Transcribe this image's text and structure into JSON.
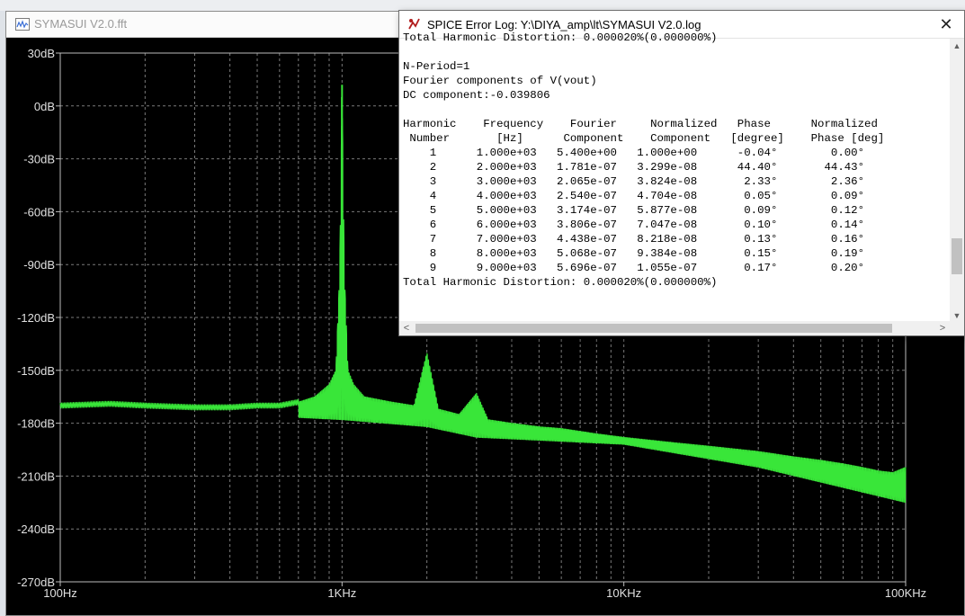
{
  "plot_window": {
    "title": "SYMASUI V2.0.fft",
    "trace_color": "#39e639"
  },
  "log_window": {
    "title": "SPICE Error Log: Y:\\DIYA_amp\\lt\\SYMASUI V2.0.log",
    "close_glyph": "✕",
    "lines": [
      "Total Harmonic Distortion: 0.000020%(0.000000%)",
      "",
      "N-Period=1",
      "Fourier components of V(vout)",
      "DC component:-0.039806",
      "",
      "Harmonic    Frequency    Fourier     Normalized   Phase      Normalized",
      " Number       [Hz]      Component    Component   [degree]    Phase [deg]",
      "    1      1.000e+03   5.400e+00   1.000e+00      -0.04°        0.00°",
      "    2      2.000e+03   1.781e-07   3.299e-08      44.40°       44.43°",
      "    3      3.000e+03   2.065e-07   3.824e-08       2.33°        2.36°",
      "    4      4.000e+03   2.540e-07   4.704e-08       0.05°        0.09°",
      "    5      5.000e+03   3.174e-07   5.877e-08       0.09°        0.12°",
      "    6      6.000e+03   3.806e-07   7.047e-08       0.10°        0.14°",
      "    7      7.000e+03   4.438e-07   8.218e-08       0.13°        0.16°",
      "    8      8.000e+03   5.068e-07   9.384e-08       0.15°        0.19°",
      "    9      9.000e+03   5.696e-07   1.055e-07       0.17°        0.20°",
      "Total Harmonic Distortion: 0.000020%(0.000000%)"
    ],
    "arrows": {
      "up": "▲",
      "down": "▼",
      "left": "<",
      "right": ">"
    }
  },
  "chart_data": {
    "type": "line",
    "title": "",
    "xlabel": "",
    "ylabel": "",
    "x_scale": "log",
    "xlim": [
      100,
      100000
    ],
    "ylim": [
      -270,
      30
    ],
    "grid": true,
    "x_ticks": [
      {
        "value": 100,
        "label": "100Hz"
      },
      {
        "value": 1000,
        "label": "1KHz"
      },
      {
        "value": 10000,
        "label": "10KHz"
      },
      {
        "value": 100000,
        "label": "100KHz"
      }
    ],
    "y_ticks": [
      {
        "value": 30,
        "label": "30dB"
      },
      {
        "value": 0,
        "label": "0dB"
      },
      {
        "value": -30,
        "label": "-30dB"
      },
      {
        "value": -60,
        "label": "-60dB"
      },
      {
        "value": -90,
        "label": "-90dB"
      },
      {
        "value": -120,
        "label": "-120dB"
      },
      {
        "value": -150,
        "label": "-150dB"
      },
      {
        "value": -180,
        "label": "-180dB"
      },
      {
        "value": -210,
        "label": "-210dB"
      },
      {
        "value": -240,
        "label": "-240dB"
      },
      {
        "value": -270,
        "label": "-270dB"
      }
    ],
    "series": [
      {
        "x": [
          100,
          150,
          200,
          300,
          400,
          500,
          600,
          700,
          800,
          900,
          950,
          980,
          1000,
          1020,
          1050,
          1100,
          1200,
          1500,
          1800,
          2000,
          2200,
          2600,
          3000,
          3300,
          4000,
          5000,
          6000,
          8000,
          10000,
          15000,
          20000,
          30000,
          40000,
          50000,
          60000,
          70000,
          80000,
          90000,
          100000
        ],
        "y": [
          -170,
          -169,
          -170,
          -171,
          -171,
          -170,
          -170,
          -168,
          -165,
          -158,
          -150,
          -95,
          12,
          -95,
          -150,
          -158,
          -165,
          -168,
          -170,
          -140,
          -172,
          -175,
          -163,
          -178,
          -180,
          -182,
          -183,
          -186,
          -188,
          -191,
          -193,
          -196,
          -199,
          -201,
          -203,
          -205,
          -207,
          -208,
          -205
        ],
        "envelope_low": [
          100,
          1000,
          2000,
          3000,
          10000,
          30000,
          100000
        ],
        "envelope_low_y": [
          -170,
          -178,
          -182,
          -188,
          -192,
          -205,
          -225
        ]
      }
    ]
  }
}
